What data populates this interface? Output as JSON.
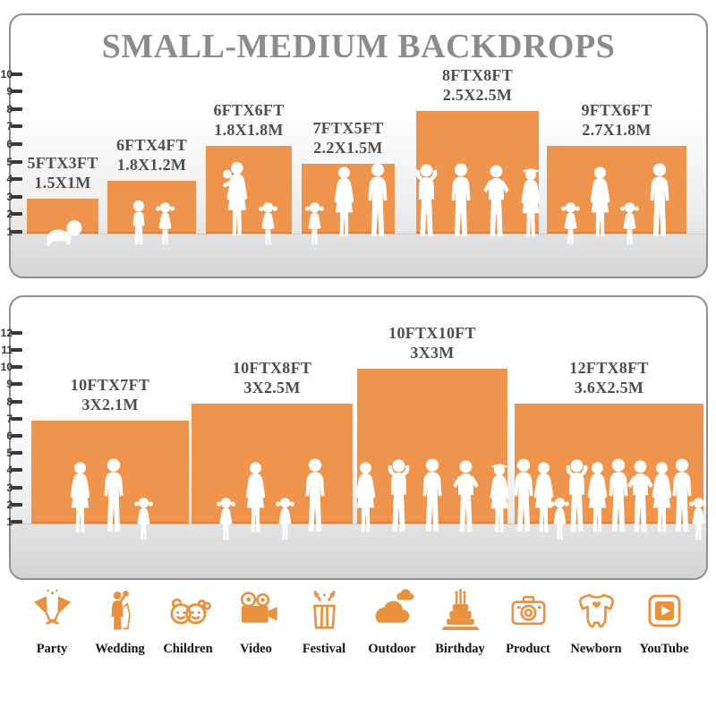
{
  "colors": {
    "accent": "#E8923F",
    "bar_fill": "#EF944D",
    "title_text": "#8C8C8C",
    "label_text": "#4E4E4E",
    "tick_text": "#383838",
    "silhouette": "#FFFFFF"
  },
  "chart_data": [
    {
      "type": "bar",
      "title": "SMALL-MEDIUM BACKDROPS",
      "ylabel": "",
      "yticks": [
        1,
        2,
        3,
        4,
        5,
        6,
        7,
        8,
        9,
        10
      ],
      "ylim": [
        1,
        10
      ],
      "grid": false,
      "legend": "none",
      "bars": [
        {
          "size_ft": "5FTX3FT",
          "size_m": "1.5X1M",
          "width_ft": 5,
          "height_ft": 3,
          "figures": [
            "baby"
          ]
        },
        {
          "size_ft": "6FTX4FT",
          "size_m": "1.8X1.2M",
          "width_ft": 6,
          "height_ft": 4,
          "figures": [
            "boy",
            "girl"
          ]
        },
        {
          "size_ft": "6FTX6FT",
          "size_m": "1.8X1.8M",
          "width_ft": 6,
          "height_ft": 6,
          "figures": [
            "woman-baby",
            "girl"
          ]
        },
        {
          "size_ft": "7FTX5FT",
          "size_m": "2.2X1.5M",
          "width_ft": 7,
          "height_ft": 5,
          "figures": [
            "girl",
            "woman",
            "man"
          ]
        },
        {
          "size_ft": "8FTX8FT",
          "size_m": "2.5X2.5M",
          "width_ft": 8,
          "height_ft": 8,
          "figures": [
            "man-up",
            "man",
            "man-hips",
            "woman-hat"
          ]
        },
        {
          "size_ft": "9FTX6FT",
          "size_m": "2.7X1.8M",
          "width_ft": 9,
          "height_ft": 6,
          "figures": [
            "girl",
            "woman",
            "girl",
            "man"
          ]
        }
      ]
    },
    {
      "type": "bar",
      "title": "",
      "ylabel": "",
      "yticks": [
        1,
        2,
        3,
        4,
        5,
        6,
        7,
        8,
        9,
        10,
        11,
        12
      ],
      "ylim": [
        1,
        12
      ],
      "grid": false,
      "legend": "none",
      "bars": [
        {
          "size_ft": "10FTX7FT",
          "size_m": "3X2.1M",
          "width_ft": 10,
          "height_ft": 7,
          "figures": [
            "woman",
            "man",
            "girl"
          ]
        },
        {
          "size_ft": "10FTX8FT",
          "size_m": "3X2.5M",
          "width_ft": 10,
          "height_ft": 8,
          "figures": [
            "girl",
            "woman",
            "girl",
            "man"
          ]
        },
        {
          "size_ft": "10FTX10FT",
          "size_m": "3X3M",
          "width_ft": 10,
          "height_ft": 10,
          "figures": [
            "woman",
            "man-up",
            "man",
            "man-hips",
            "woman-hat"
          ]
        },
        {
          "size_ft": "12FTX8FT",
          "size_m": "3.6X2.5M",
          "width_ft": 12,
          "height_ft": 8,
          "figures": [
            "man",
            "woman",
            "girl",
            "man-up",
            "woman",
            "man",
            "man-hips",
            "woman",
            "man",
            "girl"
          ]
        }
      ]
    }
  ],
  "categories": [
    {
      "label": "Party",
      "icon": "party-icon"
    },
    {
      "label": "Wedding",
      "icon": "wedding-icon"
    },
    {
      "label": "Children",
      "icon": "children-icon"
    },
    {
      "label": "Video",
      "icon": "video-icon"
    },
    {
      "label": "Festival",
      "icon": "festival-icon"
    },
    {
      "label": "Outdoor",
      "icon": "outdoor-icon"
    },
    {
      "label": "Birthday",
      "icon": "birthday-icon"
    },
    {
      "label": "Product",
      "icon": "product-icon"
    },
    {
      "label": "Newborn",
      "icon": "newborn-icon"
    },
    {
      "label": "YouTube",
      "icon": "youtube-icon"
    }
  ]
}
